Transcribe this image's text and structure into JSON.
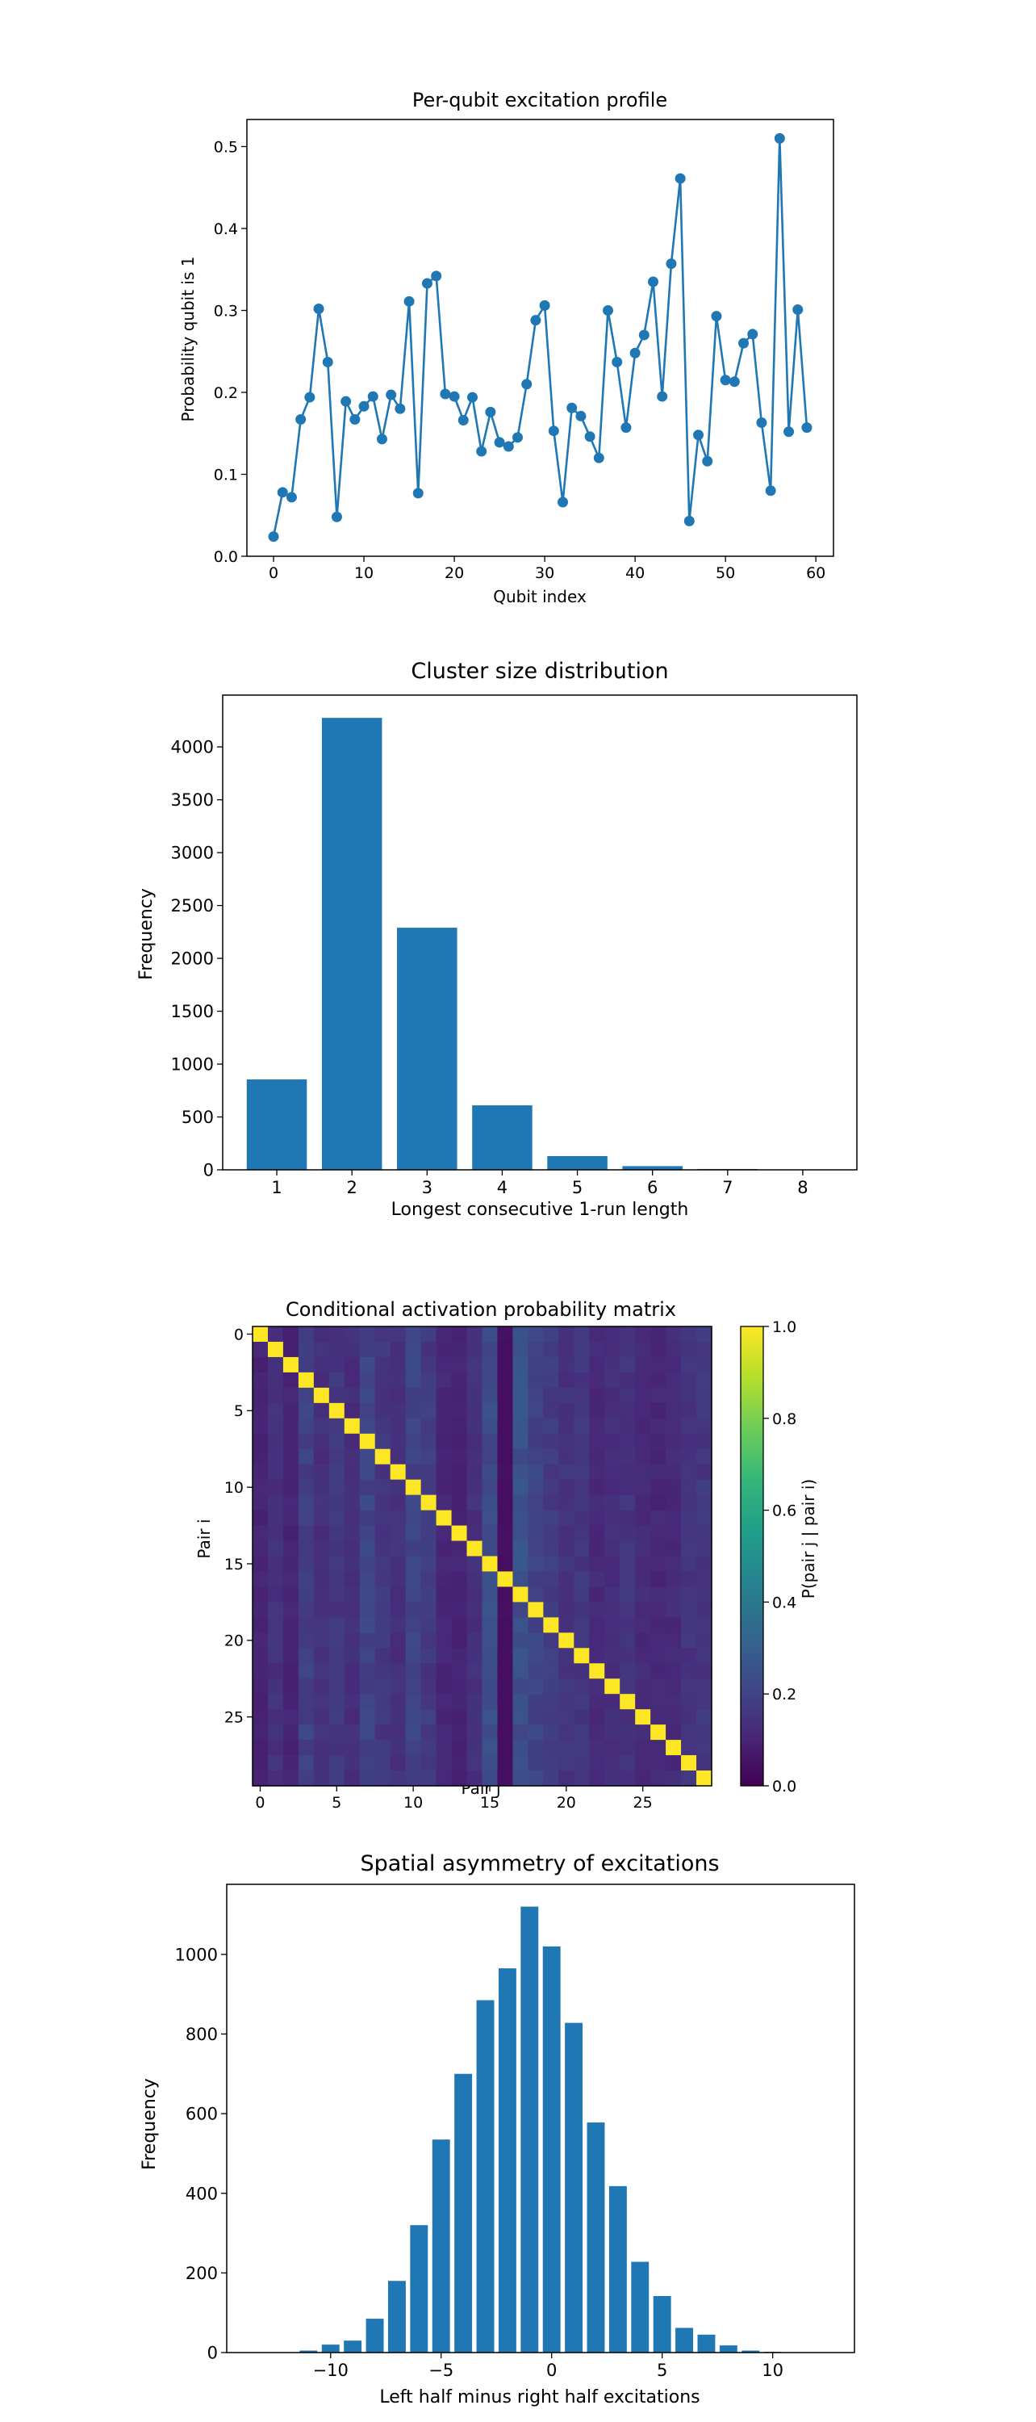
{
  "colors": {
    "series": "#1f77b4",
    "axis": "#000000",
    "background": "#ffffff"
  },
  "chart_data": [
    {
      "type": "line",
      "title": "Per-qubit excitation profile",
      "xlabel": "Qubit index",
      "ylabel": "Probability qubit is 1",
      "xlim": [
        -2.95,
        61.95
      ],
      "ylim": [
        0,
        0.533
      ],
      "xticks": [
        0,
        10,
        20,
        30,
        40,
        50,
        60
      ],
      "yticks": [
        0.0,
        0.1,
        0.2,
        0.3,
        0.4,
        0.5
      ],
      "ytick_format": 1,
      "markers": true,
      "grid": false,
      "series": [
        {
          "x": [
            0,
            1,
            2,
            3,
            4,
            5,
            6,
            7,
            8,
            9,
            10,
            11,
            12,
            13,
            14,
            15,
            16,
            17,
            18,
            19,
            20,
            21,
            22,
            23,
            24,
            25,
            26,
            27,
            28,
            29,
            30,
            31,
            32,
            33,
            34,
            35,
            36,
            37,
            38,
            39,
            40,
            41,
            42,
            43,
            44,
            45,
            46,
            47,
            48,
            49,
            50,
            51,
            52,
            53,
            54,
            55,
            56,
            57,
            58,
            59
          ],
          "values": [
            0.024,
            0.078,
            0.072,
            0.167,
            0.194,
            0.302,
            0.237,
            0.048,
            0.189,
            0.167,
            0.183,
            0.195,
            0.143,
            0.197,
            0.18,
            0.311,
            0.077,
            0.333,
            0.342,
            0.198,
            0.195,
            0.166,
            0.194,
            0.128,
            0.176,
            0.139,
            0.134,
            0.145,
            0.21,
            0.288,
            0.306,
            0.153,
            0.066,
            0.181,
            0.171,
            0.146,
            0.12,
            0.3,
            0.237,
            0.157,
            0.248,
            0.27,
            0.335,
            0.195,
            0.357,
            0.461,
            0.043,
            0.148,
            0.116,
            0.293,
            0.215,
            0.213,
            0.26,
            0.271,
            0.163,
            0.08,
            0.51,
            0.152,
            0.301,
            0.157
          ]
        }
      ]
    },
    {
      "type": "bar",
      "title": "Cluster size distribution",
      "xlabel": "Longest consecutive 1-run length",
      "ylabel": "Frequency",
      "categories": [
        "1",
        "2",
        "3",
        "4",
        "5",
        "6",
        "7",
        "8"
      ],
      "values": [
        855,
        4275,
        2290,
        610,
        130,
        35,
        8,
        2
      ],
      "xlim": [
        0.28,
        8.72
      ],
      "ylim": [
        0,
        4490
      ],
      "yticks": [
        0,
        500,
        1000,
        1500,
        2000,
        2500,
        3000,
        3500,
        4000
      ],
      "grid": false
    },
    {
      "type": "heatmap",
      "title": "Conditional activation probability matrix",
      "xlabel": "Pair j",
      "ylabel": "Pair i",
      "colorbar_label": "P(pair j | pair i)",
      "colormap": "viridis",
      "vmin": 0,
      "vmax": 1,
      "size": 30,
      "diagonal": 1.0,
      "column_base": [
        0.1,
        0.14,
        0.1,
        0.19,
        0.14,
        0.16,
        0.13,
        0.2,
        0.16,
        0.14,
        0.2,
        0.17,
        0.11,
        0.1,
        0.14,
        0.23,
        0.04,
        0.24,
        0.2,
        0.17,
        0.15,
        0.16,
        0.12,
        0.13,
        0.15,
        0.12,
        0.11,
        0.12,
        0.15,
        0.16
      ],
      "xticks": [
        0,
        5,
        10,
        15,
        20,
        25
      ],
      "yticks": [
        0,
        5,
        10,
        15,
        20,
        25
      ],
      "colorbar_ticks": [
        0.0,
        0.2,
        0.4,
        0.6,
        0.8,
        1.0
      ]
    },
    {
      "type": "bar",
      "title": "Spatial asymmetry of excitations",
      "xlabel": "Left half minus right half excitations",
      "ylabel": "Frequency",
      "categories": [
        -12,
        -11,
        -10,
        -9,
        -8,
        -7,
        -6,
        -5,
        -4,
        -3,
        -2,
        -1,
        0,
        1,
        2,
        3,
        4,
        5,
        6,
        7,
        8,
        9,
        10,
        11,
        12
      ],
      "values": [
        1,
        5,
        20,
        30,
        85,
        180,
        320,
        535,
        700,
        885,
        965,
        1120,
        1020,
        828,
        578,
        418,
        228,
        142,
        62,
        45,
        18,
        5,
        2,
        1,
        1
      ],
      "xlim": [
        -14.7,
        13.7
      ],
      "ylim": [
        0,
        1176
      ],
      "xticks": [
        -10,
        -5,
        0,
        5,
        10
      ],
      "yticks": [
        0,
        200,
        400,
        600,
        800,
        1000
      ],
      "grid": false
    }
  ]
}
